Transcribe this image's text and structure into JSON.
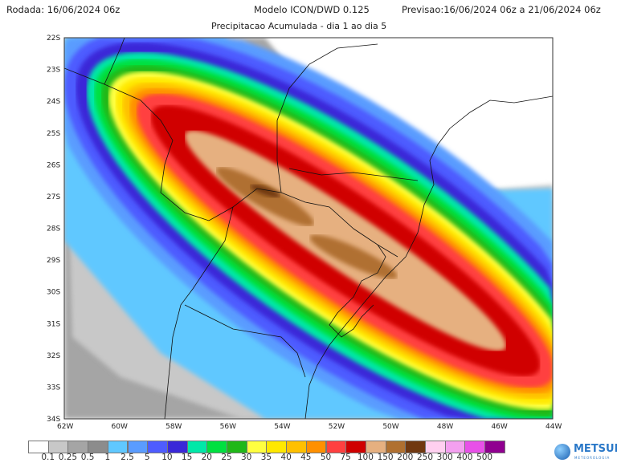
{
  "header": {
    "run": "Rodada: 16/06/2024 06z",
    "model": "Modelo ICON/DWD 0.125",
    "forecast": "Previsao:16/06/2024 06z a 21/06/2024 06z",
    "subtitle": "Precipitacao Acumulada - dia 1 ao dia 5"
  },
  "map": {
    "lat_labels": [
      "22S",
      "23S",
      "24S",
      "25S",
      "26S",
      "27S",
      "28S",
      "29S",
      "30S",
      "31S",
      "32S",
      "33S",
      "34S"
    ],
    "lon_labels": [
      "62W",
      "60W",
      "58W",
      "56W",
      "54W",
      "52W",
      "50W",
      "48W",
      "46W",
      "44W"
    ]
  },
  "colorbar": {
    "colors": [
      "#ffffff",
      "#c8c8c8",
      "#a5a5a5",
      "#8c8c8c",
      "#60c8ff",
      "#5a9cff",
      "#4e5cff",
      "#3a28d8",
      "#00e8a8",
      "#00e040",
      "#20b818",
      "#ffff40",
      "#ffe800",
      "#ffc000",
      "#ff9000",
      "#ff4040",
      "#d00000",
      "#e6b080",
      "#b07030",
      "#703810",
      "#ffd0f0",
      "#f4a0f0",
      "#e850e8",
      "#900090"
    ],
    "labels": [
      "0.1",
      "0.25",
      "0.5",
      "1",
      "2.5",
      "5",
      "10",
      "15",
      "20",
      "25",
      "30",
      "35",
      "40",
      "45",
      "50",
      "75",
      "100",
      "150",
      "200",
      "250",
      "300",
      "400",
      "500"
    ]
  },
  "logo": {
    "text": "METSUL",
    "sub": "METEOROLOGIA"
  }
}
